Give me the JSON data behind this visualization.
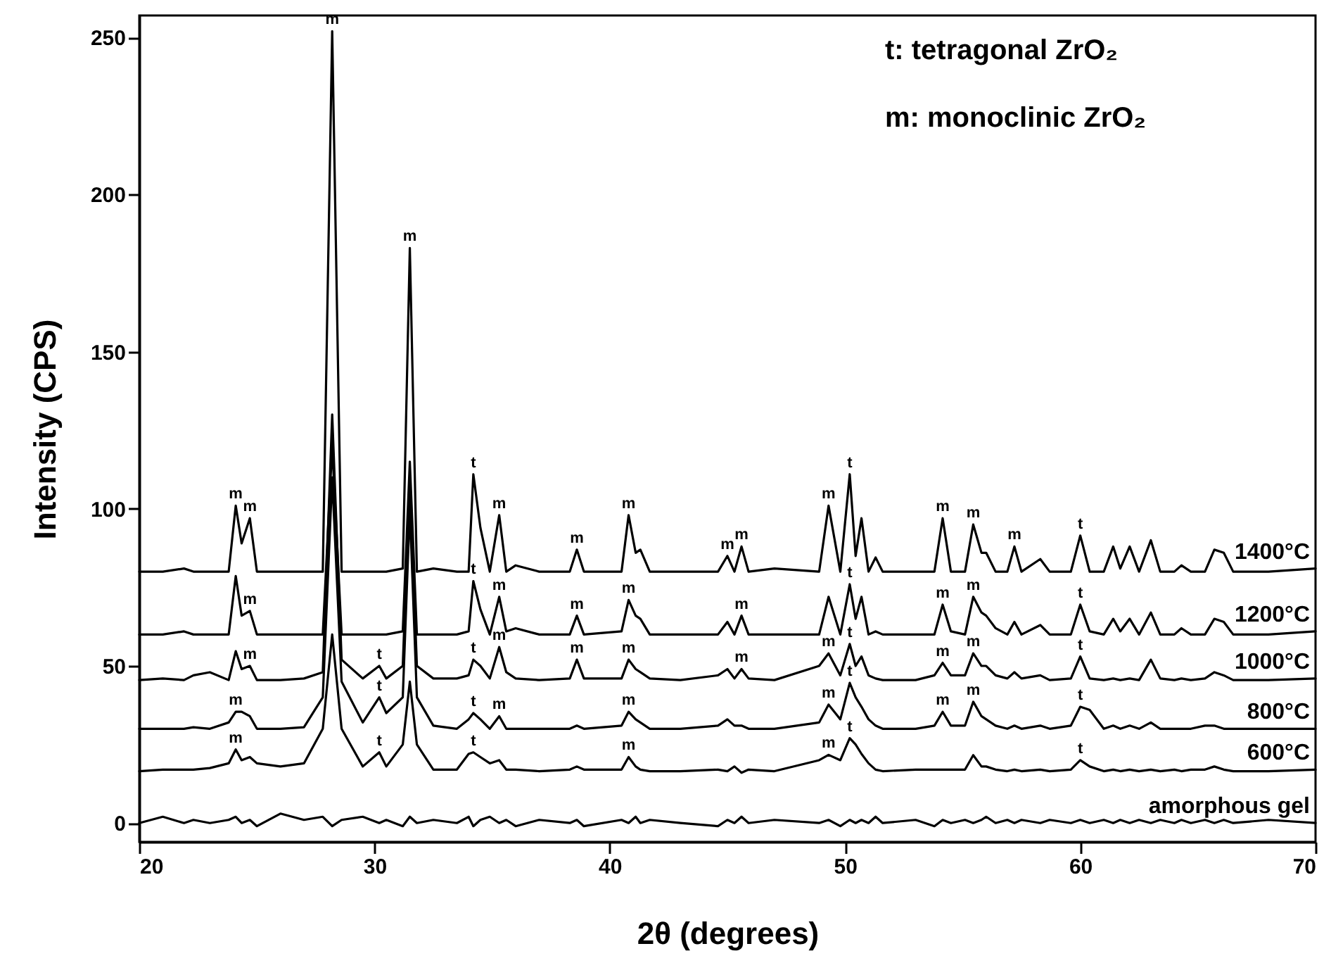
{
  "chart_data": {
    "type": "line",
    "xlabel": "2θ (degrees)",
    "ylabel": "Intensity (CPS)",
    "xlim": [
      20,
      70
    ],
    "ylim": [
      -6,
      257
    ],
    "xticks": [
      20,
      30,
      40,
      50,
      60,
      70
    ],
    "yticks": [
      0,
      50,
      100,
      150,
      200,
      250
    ],
    "grid": false,
    "line_style": "solid",
    "marker": "none",
    "x": [
      20,
      21,
      21.9,
      22.3,
      23,
      23.8,
      24.1,
      24.35,
      24.7,
      25.0,
      26,
      27,
      27.8,
      28.2,
      28.6,
      29.5,
      30.2,
      30.5,
      31.2,
      31.5,
      31.8,
      32.5,
      33.5,
      34.0,
      34.2,
      34.5,
      34.9,
      35.3,
      35.6,
      36,
      37,
      38.3,
      38.6,
      38.9,
      40.5,
      40.8,
      41.1,
      41.3,
      41.7,
      43,
      44.6,
      45.0,
      45.3,
      45.6,
      45.9,
      47,
      48.9,
      49.3,
      49.8,
      50.2,
      50.45,
      50.7,
      51.0,
      51.3,
      51.6,
      53,
      53.8,
      54.15,
      54.5,
      55.1,
      55.45,
      55.8,
      56.0,
      56.4,
      56.9,
      57.2,
      57.5,
      58.3,
      58.7,
      59.6,
      60.0,
      60.4,
      61.0,
      61.4,
      61.7,
      62.1,
      62.5,
      63.0,
      63.4,
      64.0,
      64.3,
      64.7,
      65.3,
      65.7,
      66.1,
      66.5,
      68,
      70
    ],
    "series": [
      {
        "name": "1400°C",
        "color": "#000000",
        "values": [
          80,
          80,
          81,
          80,
          80,
          80,
          101,
          89,
          97,
          80,
          80,
          80,
          80,
          252,
          80,
          80,
          80,
          80,
          81,
          183,
          80,
          81,
          80,
          80,
          111,
          94,
          80,
          98,
          80,
          82,
          80,
          80,
          87,
          80,
          80,
          98,
          86,
          87,
          80,
          80,
          80,
          85,
          80,
          88,
          80,
          81,
          80,
          101,
          80,
          111,
          85,
          97,
          80,
          84.5,
          80,
          80,
          80,
          97,
          80,
          80,
          95,
          86,
          86,
          80,
          80,
          88,
          80,
          84,
          80,
          80,
          91.5,
          80,
          80,
          88,
          81,
          88,
          80,
          90,
          80,
          80,
          82,
          80,
          80,
          87,
          86,
          80,
          80,
          81
        ]
      },
      {
        "name": "1200°C",
        "color": "#000000",
        "values": [
          60,
          60,
          61,
          60,
          60,
          60,
          78.6,
          66,
          67.5,
          60,
          60,
          60,
          60,
          120,
          60,
          60,
          60,
          60,
          61,
          115,
          60,
          60,
          60,
          61,
          77,
          68,
          60,
          72,
          61,
          62,
          60,
          60,
          66,
          60,
          61,
          71,
          66,
          65,
          60,
          60,
          60,
          64,
          60,
          66,
          60,
          60,
          60,
          72,
          60,
          76,
          65,
          72,
          60,
          61,
          60,
          60,
          60,
          69.5,
          61,
          60,
          72,
          67,
          66,
          62,
          60,
          64,
          60,
          63,
          60,
          60,
          69.5,
          61,
          60,
          65,
          61,
          65,
          60,
          67,
          60,
          60,
          62,
          60,
          60,
          65,
          64,
          60,
          60,
          61
        ]
      },
      {
        "name": "1000°C",
        "color": "#000000",
        "values": [
          45.5,
          46,
          45.5,
          47,
          48,
          45.5,
          54.7,
          49,
          50,
          45.5,
          45.5,
          46,
          48,
          130,
          52,
          46,
          50,
          46,
          50,
          110,
          50,
          46,
          46,
          47,
          52,
          50,
          46,
          56,
          48,
          46,
          45.5,
          46,
          52,
          46,
          46,
          52,
          49,
          48,
          46,
          45.5,
          47,
          49,
          46,
          49,
          46,
          45.5,
          50,
          54,
          47,
          57,
          50,
          53,
          47,
          46,
          45.5,
          45.5,
          47,
          51,
          47,
          47,
          54,
          50,
          50,
          47,
          46,
          48,
          46,
          47,
          45.5,
          46,
          53,
          46,
          45.5,
          46,
          45.5,
          46,
          45.5,
          52,
          46,
          45.5,
          46,
          45.5,
          46,
          48,
          47,
          45.5,
          45.5,
          46
        ]
      },
      {
        "name": "800°C",
        "color": "#000000",
        "values": [
          30,
          30,
          30,
          30.5,
          30,
          32,
          35.4,
          35.4,
          34,
          30,
          30,
          30.5,
          40,
          110,
          45,
          32,
          40,
          35,
          40,
          100,
          40,
          31,
          30,
          33,
          35,
          33,
          30,
          34,
          30,
          30,
          30,
          30,
          31,
          30,
          31,
          35.4,
          33,
          32,
          30,
          30,
          31,
          33,
          31,
          31,
          30,
          30,
          32,
          37.7,
          33,
          44.6,
          40,
          37,
          33,
          31,
          30,
          30,
          31,
          35.4,
          31,
          31,
          38.6,
          34,
          33,
          31,
          30,
          31,
          30,
          31,
          30,
          31,
          37,
          36,
          30,
          31,
          30,
          31,
          30,
          32,
          30,
          30,
          30,
          30,
          31,
          31,
          30,
          30,
          30,
          30
        ]
      },
      {
        "name": "600°C",
        "color": "#000000",
        "values": [
          16.5,
          17,
          17,
          17,
          17.5,
          19,
          23.4,
          20,
          21,
          19,
          18,
          19,
          30,
          60,
          30,
          18,
          22.5,
          18,
          25,
          45,
          25,
          17,
          17,
          22,
          22.5,
          21,
          19,
          20,
          17,
          17,
          16.5,
          17,
          18,
          17,
          17,
          21,
          18,
          17,
          16.5,
          16.5,
          17,
          16.5,
          18,
          16,
          17,
          16.5,
          20,
          21.7,
          20,
          27,
          25,
          22,
          19,
          17,
          16.5,
          17,
          17,
          17,
          17,
          17,
          21.6,
          18,
          18,
          17,
          16.5,
          17,
          16.5,
          17,
          16.5,
          17,
          20,
          18,
          16.5,
          17,
          16.5,
          17,
          16.5,
          17,
          16.5,
          17,
          16.5,
          17,
          17,
          18,
          17,
          16.5,
          16.5,
          17
        ]
      },
      {
        "name": "amorphous gel",
        "color": "#000000",
        "values": [
          0,
          2,
          0,
          1,
          0,
          1,
          2,
          0,
          1,
          -1,
          3,
          1,
          2,
          -1,
          1,
          2,
          0,
          1,
          -1,
          2,
          0,
          1,
          0,
          2,
          -1,
          1,
          2,
          0,
          1,
          -1,
          1,
          0,
          1,
          -1,
          1,
          0,
          2,
          0,
          1,
          0,
          -1,
          1,
          0,
          2,
          0,
          1,
          0,
          1,
          -1,
          1,
          0,
          1,
          0,
          2,
          0,
          1,
          -1,
          1,
          0,
          1,
          0,
          1,
          2,
          0,
          1,
          0,
          1,
          0,
          1,
          0,
          1,
          0,
          1,
          0,
          1,
          0,
          1,
          0,
          1,
          0,
          1,
          0,
          1,
          0,
          1,
          0,
          1,
          0
        ]
      }
    ],
    "annotations": [
      "t: tetragonal ZrO₂",
      "m: monoclinic ZrO₂",
      {
        "text": "m",
        "x": 24.1,
        "y": 101
      },
      {
        "text": "m",
        "x": 24.7,
        "y": 97
      },
      {
        "text": "m",
        "x": 28.2,
        "y": 252
      },
      {
        "text": "m",
        "x": 31.5,
        "y": 183
      },
      {
        "text": "t",
        "x": 34.2,
        "y": 111
      },
      {
        "text": "m",
        "x": 35.3,
        "y": 98
      },
      {
        "text": "m",
        "x": 38.6,
        "y": 87
      },
      {
        "text": "m",
        "x": 40.8,
        "y": 98
      },
      {
        "text": "m",
        "x": 45.0,
        "y": 85
      },
      {
        "text": "m",
        "x": 45.6,
        "y": 88
      },
      {
        "text": "m",
        "x": 49.3,
        "y": 101
      },
      {
        "text": "t",
        "x": 50.2,
        "y": 111
      },
      {
        "text": "m",
        "x": 54.15,
        "y": 97
      },
      {
        "text": "m",
        "x": 55.45,
        "y": 95
      },
      {
        "text": "m",
        "x": 57.2,
        "y": 88
      },
      {
        "text": "t",
        "x": 60.0,
        "y": 91.5
      },
      {
        "text": "m",
        "x": 24.7,
        "y": 67.5
      },
      {
        "text": "t",
        "x": 34.2,
        "y": 77
      },
      {
        "text": "m",
        "x": 35.3,
        "y": 72
      },
      {
        "text": "m",
        "x": 38.6,
        "y": 66
      },
      {
        "text": "m",
        "x": 40.8,
        "y": 71
      },
      {
        "text": "m",
        "x": 45.6,
        "y": 66
      },
      {
        "text": "t",
        "x": 50.2,
        "y": 76
      },
      {
        "text": "m",
        "x": 54.15,
        "y": 69.5
      },
      {
        "text": "m",
        "x": 55.45,
        "y": 72
      },
      {
        "text": "t",
        "x": 60.0,
        "y": 69.5
      },
      {
        "text": "m",
        "x": 24.7,
        "y": 50
      },
      {
        "text": "t",
        "x": 30.2,
        "y": 50
      },
      {
        "text": "t",
        "x": 34.2,
        "y": 52
      },
      {
        "text": "m",
        "x": 35.3,
        "y": 56
      },
      {
        "text": "m",
        "x": 38.6,
        "y": 52
      },
      {
        "text": "m",
        "x": 40.8,
        "y": 52
      },
      {
        "text": "m",
        "x": 45.6,
        "y": 49
      },
      {
        "text": "m",
        "x": 49.3,
        "y": 54
      },
      {
        "text": "t",
        "x": 50.2,
        "y": 57
      },
      {
        "text": "m",
        "x": 54.15,
        "y": 51
      },
      {
        "text": "m",
        "x": 55.45,
        "y": 54
      },
      {
        "text": "t",
        "x": 60.0,
        "y": 53
      },
      {
        "text": "m",
        "x": 24.1,
        "y": 35.4
      },
      {
        "text": "t",
        "x": 30.2,
        "y": 40
      },
      {
        "text": "t",
        "x": 34.2,
        "y": 35
      },
      {
        "text": "m",
        "x": 35.3,
        "y": 34
      },
      {
        "text": "m",
        "x": 40.8,
        "y": 35.4
      },
      {
        "text": "m",
        "x": 49.3,
        "y": 37.7
      },
      {
        "text": "t",
        "x": 50.2,
        "y": 44.6
      },
      {
        "text": "m",
        "x": 54.15,
        "y": 35.4
      },
      {
        "text": "m",
        "x": 55.45,
        "y": 38.6
      },
      {
        "text": "t",
        "x": 60.0,
        "y": 37
      },
      {
        "text": "m",
        "x": 24.1,
        "y": 23.4
      },
      {
        "text": "t",
        "x": 30.2,
        "y": 22.5
      },
      {
        "text": "t",
        "x": 34.2,
        "y": 22.5
      },
      {
        "text": "m",
        "x": 40.8,
        "y": 21
      },
      {
        "text": "m",
        "x": 49.3,
        "y": 21.7
      },
      {
        "text": "t",
        "x": 50.2,
        "y": 27
      },
      {
        "text": "t",
        "x": 60.0,
        "y": 20
      }
    ]
  }
}
